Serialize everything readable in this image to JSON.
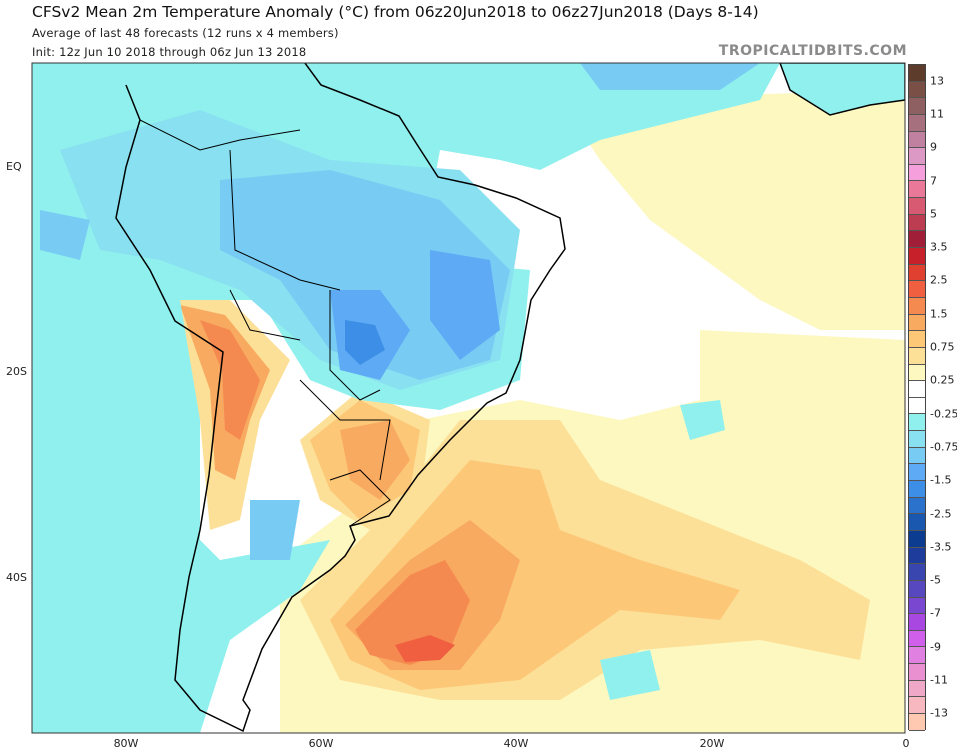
{
  "header": {
    "title": "CFSv2 Mean 2m Temperature Anomaly (°C) from 06z20Jun2018 to 06z27Jun2018 (Days 8-14)",
    "subtitle": "Average of last 48 forecasts (12 runs x 4 members)",
    "init": "Init: 12z Jun 10 2018 through 06z Jun 13 2018",
    "watermark": "TROPICALTIDBITS.COM"
  },
  "axes": {
    "lat_labels": [
      "EQ",
      "20S",
      "40S"
    ],
    "lon_labels": [
      "80W",
      "60W",
      "40W",
      "20W",
      "0"
    ]
  },
  "colorbar": {
    "labels": [
      "13",
      "11",
      "9",
      "7",
      "5",
      "3.5",
      "2.5",
      "1.5",
      "0.75",
      "0.25",
      "-0.25",
      "-0.75",
      "-1.5",
      "-2.5",
      "-3.5",
      "-5",
      "-7",
      "-9",
      "-11",
      "-13"
    ],
    "colors": [
      "#5e3c2c",
      "#7a5046",
      "#8f6062",
      "#a6707e",
      "#c080a0",
      "#dc99c6",
      "#f5a0dc",
      "#ea7898",
      "#d85a72",
      "#bc3c52",
      "#a01e38",
      "#c8202a",
      "#e04030",
      "#f06040",
      "#f58a50",
      "#f8aa60",
      "#fcc878",
      "#fde098",
      "#fdf8c0",
      "#ffffff",
      "#ffffff",
      "#90f0ee",
      "#88e0f0",
      "#78ccf4",
      "#5eaaf5",
      "#3c8ee6",
      "#2a72cc",
      "#1a58b0",
      "#0c3c90",
      "#1e3c9c",
      "#3a46b0",
      "#5848c0",
      "#7a48d0",
      "#a848e0",
      "#d060ec",
      "#e080e0",
      "#e890d0",
      "#f0a8c8",
      "#f8b8c0",
      "#ffc8b0"
    ]
  }
}
